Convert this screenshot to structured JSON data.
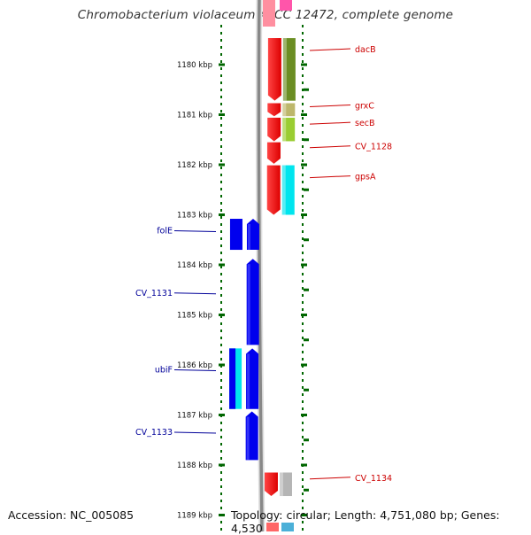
{
  "title": "Chromobacterium violaceum ATCC 12472, complete genome",
  "accession_text": "Accession: NC_005085",
  "topology_text": "Topology: circular; Length: 4,751,080 bp; Genes: 4,530",
  "colors": {
    "forward_label": "#cc0000",
    "reverse_label": "#000099",
    "ruler_tick": "#006600",
    "backbone": "#888888"
  },
  "ruler": {
    "unit": "kbp",
    "ticks": [
      {
        "kbp": 1180,
        "label": "1180 kbp"
      },
      {
        "kbp": 1181,
        "label": "1181 kbp"
      },
      {
        "kbp": 1182,
        "label": "1182 kbp"
      },
      {
        "kbp": 1183,
        "label": "1183 kbp"
      },
      {
        "kbp": 1184,
        "label": "1184 kbp"
      },
      {
        "kbp": 1185,
        "label": "1185 kbp"
      },
      {
        "kbp": 1186,
        "label": "1186 kbp"
      },
      {
        "kbp": 1187,
        "label": "1187 kbp"
      },
      {
        "kbp": 1188,
        "label": "1188 kbp"
      },
      {
        "kbp": 1189,
        "label": "1189 kbp"
      }
    ]
  },
  "forward_genes": [
    {
      "name": "dacB",
      "start_kbp": 1179.47,
      "end_kbp": 1180.72,
      "cat_color": "#6b8e23"
    },
    {
      "name": "grxC",
      "start_kbp": 1180.77,
      "end_kbp": 1181.03,
      "cat_color": "#bdb76b"
    },
    {
      "name": "secB",
      "start_kbp": 1181.06,
      "end_kbp": 1181.53,
      "cat_color": "#9acd32"
    },
    {
      "name": "CV_1128",
      "start_kbp": 1181.55,
      "end_kbp": 1181.98,
      "cat_color": ""
    },
    {
      "name": "gpsA",
      "start_kbp": 1182.01,
      "end_kbp": 1183.0,
      "cat_color": "#00e5ee"
    },
    {
      "name": "CV_1134",
      "start_kbp": 1188.15,
      "end_kbp": 1188.62,
      "cat_color": "#b5b5b5"
    }
  ],
  "reverse_genes": [
    {
      "name": "folE",
      "start_kbp": 1183.08,
      "end_kbp": 1183.7,
      "cat_color": "#0000ee"
    },
    {
      "name": "CV_1131",
      "start_kbp": 1183.88,
      "end_kbp": 1185.6,
      "cat_color": ""
    },
    {
      "name": "ubiF",
      "start_kbp": 1185.67,
      "end_kbp": 1186.88,
      "cat_color": "#00e5ee"
    },
    {
      "name": "CV_1133",
      "start_kbp": 1186.93,
      "end_kbp": 1187.9,
      "cat_color": ""
    }
  ]
}
